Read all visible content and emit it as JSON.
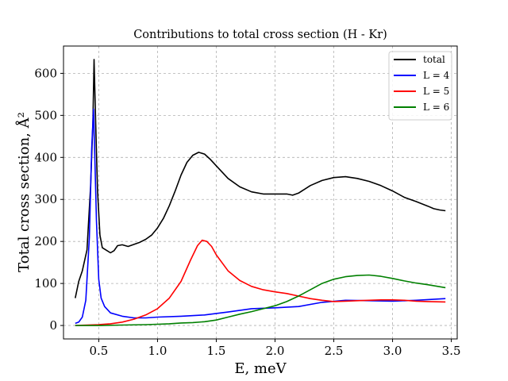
{
  "chart_data": {
    "type": "line",
    "title": "Contributions to total cross section (H - Kr)",
    "xlabel": "E, meV",
    "ylabel": "Total cross section, Å²",
    "xlim": [
      0.2,
      3.55
    ],
    "ylim": [
      -32,
      665
    ],
    "xticks": [
      0.5,
      1.0,
      1.5,
      2.0,
      2.5,
      3.0,
      3.5
    ],
    "xtick_labels": [
      "0.5",
      "1.0",
      "1.5",
      "2.0",
      "2.5",
      "3.0",
      "3.5"
    ],
    "yticks": [
      0,
      100,
      200,
      300,
      400,
      500,
      600
    ],
    "ytick_labels": [
      "0",
      "100",
      "200",
      "300",
      "400",
      "500",
      "600"
    ],
    "grid": true,
    "legend_position": "top-right",
    "series": [
      {
        "name": "total",
        "color": "#000000",
        "x": [
          0.3,
          0.33,
          0.36,
          0.4,
          0.43,
          0.45,
          0.46,
          0.475,
          0.49,
          0.51,
          0.53,
          0.56,
          0.6,
          0.63,
          0.66,
          0.7,
          0.75,
          0.8,
          0.85,
          0.9,
          0.95,
          1.0,
          1.05,
          1.1,
          1.15,
          1.2,
          1.25,
          1.3,
          1.35,
          1.4,
          1.45,
          1.5,
          1.6,
          1.7,
          1.8,
          1.9,
          2.0,
          2.1,
          2.15,
          2.2,
          2.3,
          2.4,
          2.5,
          2.6,
          2.7,
          2.8,
          2.9,
          3.0,
          3.1,
          3.2,
          3.3,
          3.35,
          3.4,
          3.45
        ],
        "y": [
          65,
          105,
          130,
          180,
          330,
          480,
          633,
          470,
          320,
          215,
          185,
          180,
          173,
          178,
          190,
          192,
          188,
          193,
          198,
          205,
          215,
          232,
          255,
          285,
          320,
          358,
          388,
          405,
          412,
          408,
          395,
          380,
          350,
          330,
          318,
          313,
          313,
          313,
          310,
          315,
          333,
          345,
          352,
          354,
          350,
          343,
          333,
          320,
          305,
          295,
          284,
          278,
          275,
          273
        ]
      },
      {
        "name": "L = 4",
        "color": "#0000ff",
        "x": [
          0.3,
          0.33,
          0.36,
          0.39,
          0.42,
          0.44,
          0.455,
          0.465,
          0.48,
          0.5,
          0.52,
          0.55,
          0.6,
          0.7,
          0.8,
          0.9,
          1.0,
          1.2,
          1.4,
          1.6,
          1.8,
          2.0,
          2.2,
          2.4,
          2.6,
          2.8,
          3.0,
          3.2,
          3.45
        ],
        "y": [
          5,
          8,
          20,
          60,
          210,
          420,
          515,
          420,
          250,
          110,
          65,
          45,
          30,
          22,
          18,
          18,
          20,
          22,
          25,
          32,
          40,
          42,
          45,
          55,
          60,
          59,
          58,
          60,
          64
        ]
      },
      {
        "name": "L = 5",
        "color": "#ff0000",
        "x": [
          0.3,
          0.4,
          0.5,
          0.6,
          0.7,
          0.8,
          0.9,
          1.0,
          1.1,
          1.2,
          1.28,
          1.34,
          1.38,
          1.42,
          1.46,
          1.5,
          1.6,
          1.7,
          1.8,
          1.9,
          2.0,
          2.1,
          2.2,
          2.3,
          2.4,
          2.5,
          2.6,
          2.7,
          2.8,
          2.9,
          3.0,
          3.1,
          3.2,
          3.3,
          3.45
        ],
        "y": [
          0,
          1,
          2,
          4,
          8,
          15,
          25,
          40,
          65,
          105,
          155,
          190,
          203,
          200,
          188,
          168,
          130,
          107,
          93,
          85,
          80,
          76,
          70,
          64,
          60,
          57,
          58,
          59,
          60,
          61,
          61,
          60,
          58,
          57,
          56
        ]
      },
      {
        "name": "L = 6",
        "color": "#008000",
        "x": [
          0.3,
          0.5,
          0.7,
          0.9,
          1.0,
          1.1,
          1.2,
          1.3,
          1.4,
          1.5,
          1.6,
          1.7,
          1.8,
          1.9,
          2.0,
          2.1,
          2.2,
          2.3,
          2.4,
          2.5,
          2.6,
          2.7,
          2.8,
          2.9,
          3.0,
          3.1,
          3.2,
          3.3,
          3.45
        ],
        "y": [
          0,
          0,
          1,
          2,
          3,
          4,
          6,
          7,
          9,
          13,
          20,
          27,
          33,
          40,
          47,
          57,
          70,
          85,
          100,
          110,
          116,
          119,
          120,
          117,
          112,
          106,
          101,
          97,
          90
        ]
      }
    ]
  }
}
